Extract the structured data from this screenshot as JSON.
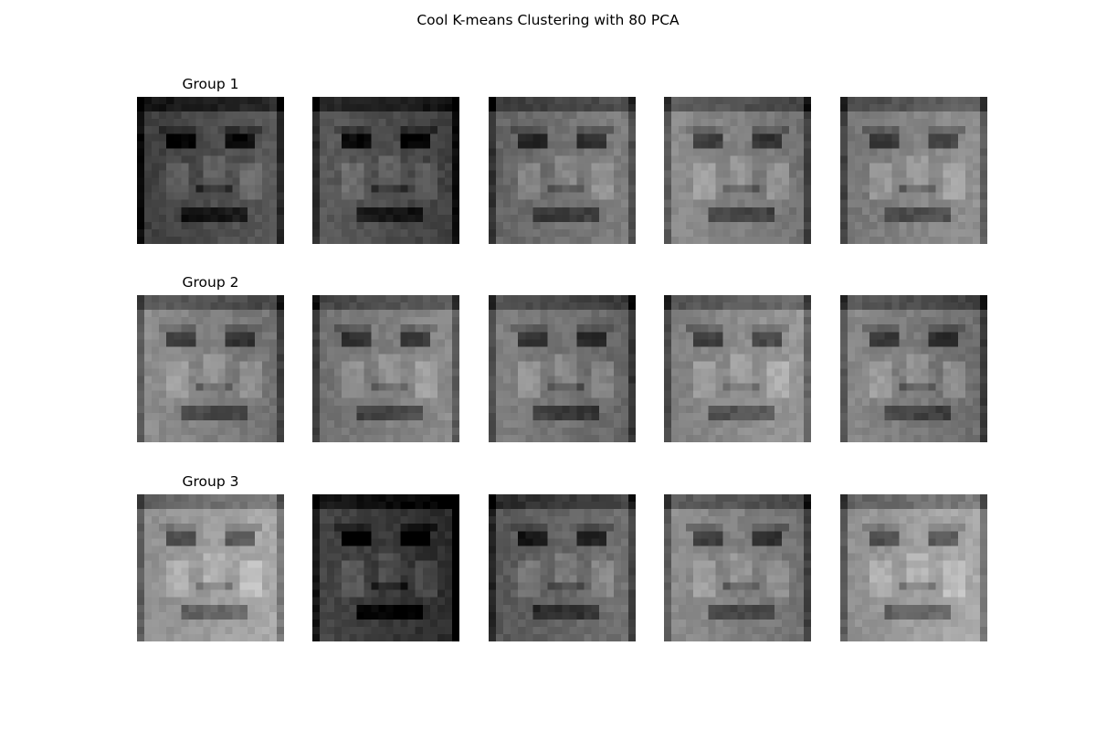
{
  "figure": {
    "title": "Cool K-means Clustering with 80 PCA",
    "colormap": "grayscale"
  },
  "groups": [
    {
      "label": "Group 1",
      "faces": [
        {
          "content": "face-image",
          "tone": 0.3
        },
        {
          "content": "face-image",
          "tone": 0.3
        },
        {
          "content": "face-image",
          "tone": 0.45
        },
        {
          "content": "face-image",
          "tone": 0.5
        },
        {
          "content": "face-image",
          "tone": 0.52
        }
      ]
    },
    {
      "label": "Group 2",
      "faces": [
        {
          "content": "face-image",
          "tone": 0.5
        },
        {
          "content": "face-image",
          "tone": 0.5
        },
        {
          "content": "face-image",
          "tone": 0.45
        },
        {
          "content": "face-image",
          "tone": 0.55
        },
        {
          "content": "face-image",
          "tone": 0.48
        }
      ]
    },
    {
      "label": "Group 3",
      "faces": [
        {
          "content": "face-image",
          "tone": 0.62
        },
        {
          "content": "face-image",
          "tone": 0.22
        },
        {
          "content": "face-image",
          "tone": 0.4
        },
        {
          "content": "face-image",
          "tone": 0.5
        },
        {
          "content": "face-image",
          "tone": 0.62
        }
      ]
    }
  ]
}
